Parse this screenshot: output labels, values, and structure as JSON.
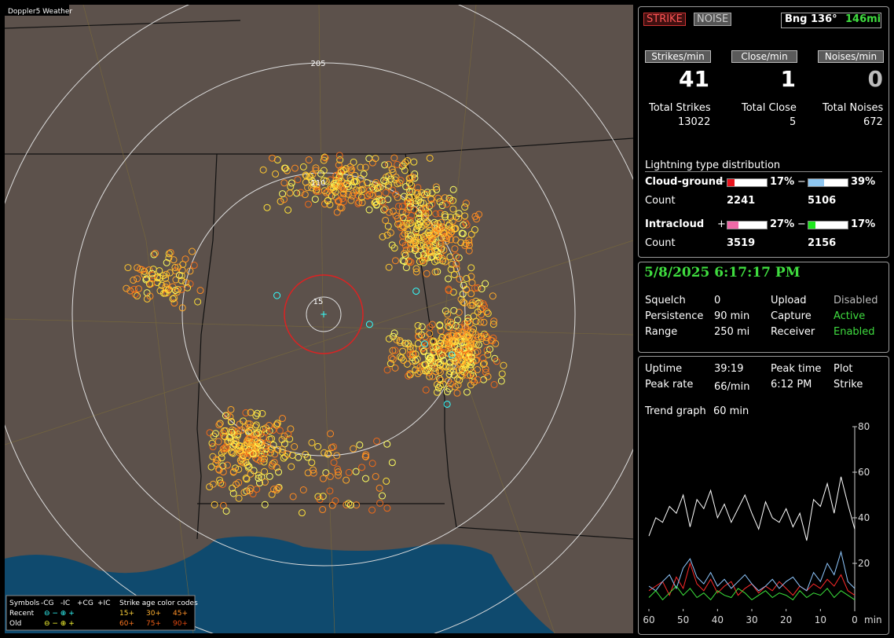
{
  "map": {
    "title": "Doppler5 Weather",
    "range_labels": [
      "205",
      "110",
      "15"
    ]
  },
  "legend": {
    "header": [
      "Symbols",
      "-CG",
      "-IC",
      "+CG",
      "+IC",
      "Strike age color codes"
    ],
    "rows": [
      {
        "label": "Recent",
        "ages": [
          "15+",
          "30+",
          "45+"
        ]
      },
      {
        "label": "Old",
        "ages": [
          "60+",
          "75+",
          "90+"
        ]
      }
    ]
  },
  "status": {
    "strike": "STRIKE",
    "noise": "NOISE",
    "bearing": "Bng 136°",
    "distance": "146mi"
  },
  "rates": [
    {
      "label": "Strikes/min",
      "value": 41,
      "total_label": "Total Strikes",
      "total": 13022
    },
    {
      "label": "Close/min",
      "value": 1,
      "total_label": "Total Close",
      "total": 5
    },
    {
      "label": "Noises/min",
      "value": 0,
      "total_label": "Total Noises",
      "total": 672
    }
  ],
  "distribution": {
    "title": "Lightning type distribution",
    "rows": [
      {
        "label": "Cloud-ground",
        "count_label": "Count",
        "pos_sign": "+",
        "neg_sign": "−",
        "pos": {
          "value": 17,
          "label": "17%"
        },
        "neg": {
          "value": 39,
          "label": "39%"
        },
        "pos_count": 2241,
        "neg_count": 5106
      },
      {
        "label": "Intracloud",
        "count_label": "Count",
        "pos_sign": "+",
        "neg_sign": "−",
        "pos": {
          "value": 27,
          "label": "27%"
        },
        "neg": {
          "value": 17,
          "label": "17%"
        },
        "pos_count": 3519,
        "neg_count": 2156
      }
    ]
  },
  "clock": "5/8/2025 6:17:17 PM",
  "settings": [
    [
      "Squelch",
      "0",
      "Upload",
      "Disabled"
    ],
    [
      "Persistence",
      "90 min",
      "Capture",
      "Active"
    ],
    [
      "Range",
      "250 mi",
      "Receiver",
      "Enabled"
    ]
  ],
  "stats": [
    [
      "Uptime",
      "39:19",
      "Peak time",
      "Plot"
    ],
    [
      "Peak rate",
      "66/min",
      "6:12 PM",
      "Strike"
    ]
  ],
  "trend_label": [
    "Trend graph",
    "60 min"
  ],
  "chart_data": {
    "type": "line",
    "x": [
      60,
      58,
      56,
      54,
      52,
      50,
      48,
      46,
      44,
      42,
      40,
      38,
      36,
      34,
      32,
      30,
      28,
      26,
      24,
      22,
      20,
      18,
      16,
      14,
      12,
      10,
      8,
      6,
      4,
      2,
      0
    ],
    "series": [
      {
        "color": "#ffffff",
        "values": [
          32,
          40,
          38,
          45,
          42,
          50,
          36,
          48,
          44,
          52,
          40,
          46,
          38,
          44,
          50,
          42,
          35,
          47,
          40,
          38,
          44,
          36,
          42,
          30,
          48,
          45,
          55,
          42,
          58,
          46,
          35
        ]
      },
      {
        "color": "#ff2a2a",
        "values": [
          8,
          10,
          12,
          6,
          14,
          9,
          20,
          11,
          8,
          13,
          7,
          10,
          12,
          6,
          9,
          11,
          7,
          10,
          8,
          12,
          9,
          6,
          10,
          8,
          11,
          9,
          13,
          10,
          15,
          8,
          6
        ]
      },
      {
        "color": "#8fc8ff",
        "values": [
          10,
          8,
          12,
          15,
          9,
          18,
          22,
          14,
          11,
          16,
          10,
          13,
          9,
          12,
          15,
          11,
          8,
          10,
          13,
          9,
          12,
          14,
          10,
          8,
          16,
          12,
          20,
          15,
          25,
          12,
          9
        ]
      },
      {
        "color": "#3ce23c",
        "values": [
          5,
          8,
          4,
          7,
          10,
          6,
          9,
          5,
          7,
          4,
          8,
          6,
          5,
          9,
          7,
          4,
          6,
          8,
          5,
          7,
          6,
          4,
          8,
          5,
          7,
          6,
          9,
          5,
          8,
          6,
          4
        ]
      }
    ],
    "xlim": [
      60,
      0
    ],
    "xticks": [
      60,
      50,
      40,
      30,
      20,
      10,
      0
    ],
    "x_unit": "min",
    "ylim": [
      0,
      80
    ],
    "yticks": [
      20,
      40,
      60,
      80
    ]
  }
}
